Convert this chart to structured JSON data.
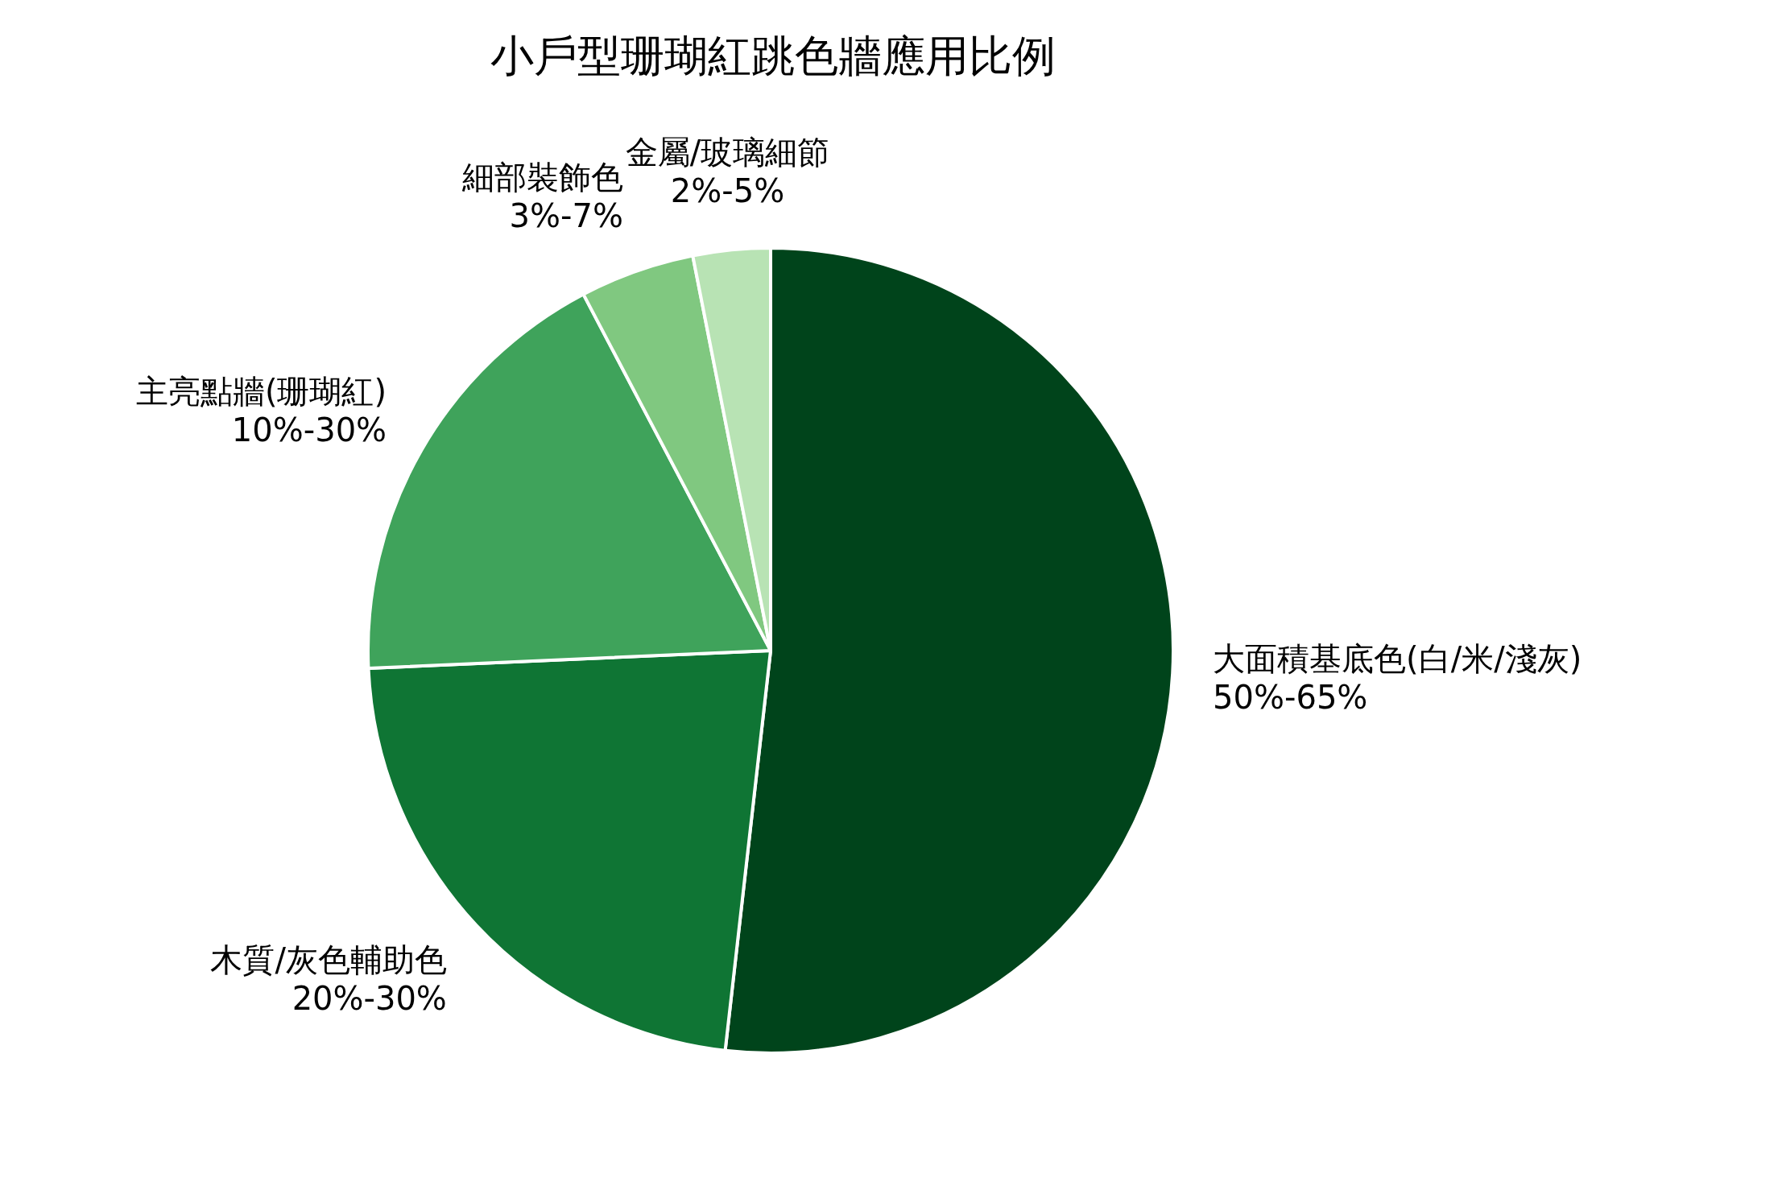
{
  "chart_data": {
    "type": "pie",
    "title": "小戶型珊瑚紅跳色牆應用比例",
    "categories": [
      "大面積基底色(白/米/淺灰) 50%-65%",
      "木質/灰色輔助色 20%-30%",
      "主亮點牆(珊瑚紅) 10%-30%",
      "細部裝飾色 3%-7%",
      "金屬/玻璃細節 2%-5%"
    ],
    "values": [
      51.8,
      22.5,
      18.0,
      4.6,
      3.1
    ],
    "colors": [
      "#00441b",
      "#0f7534",
      "#3fa35b",
      "#80c880",
      "#b8e3b4"
    ]
  }
}
